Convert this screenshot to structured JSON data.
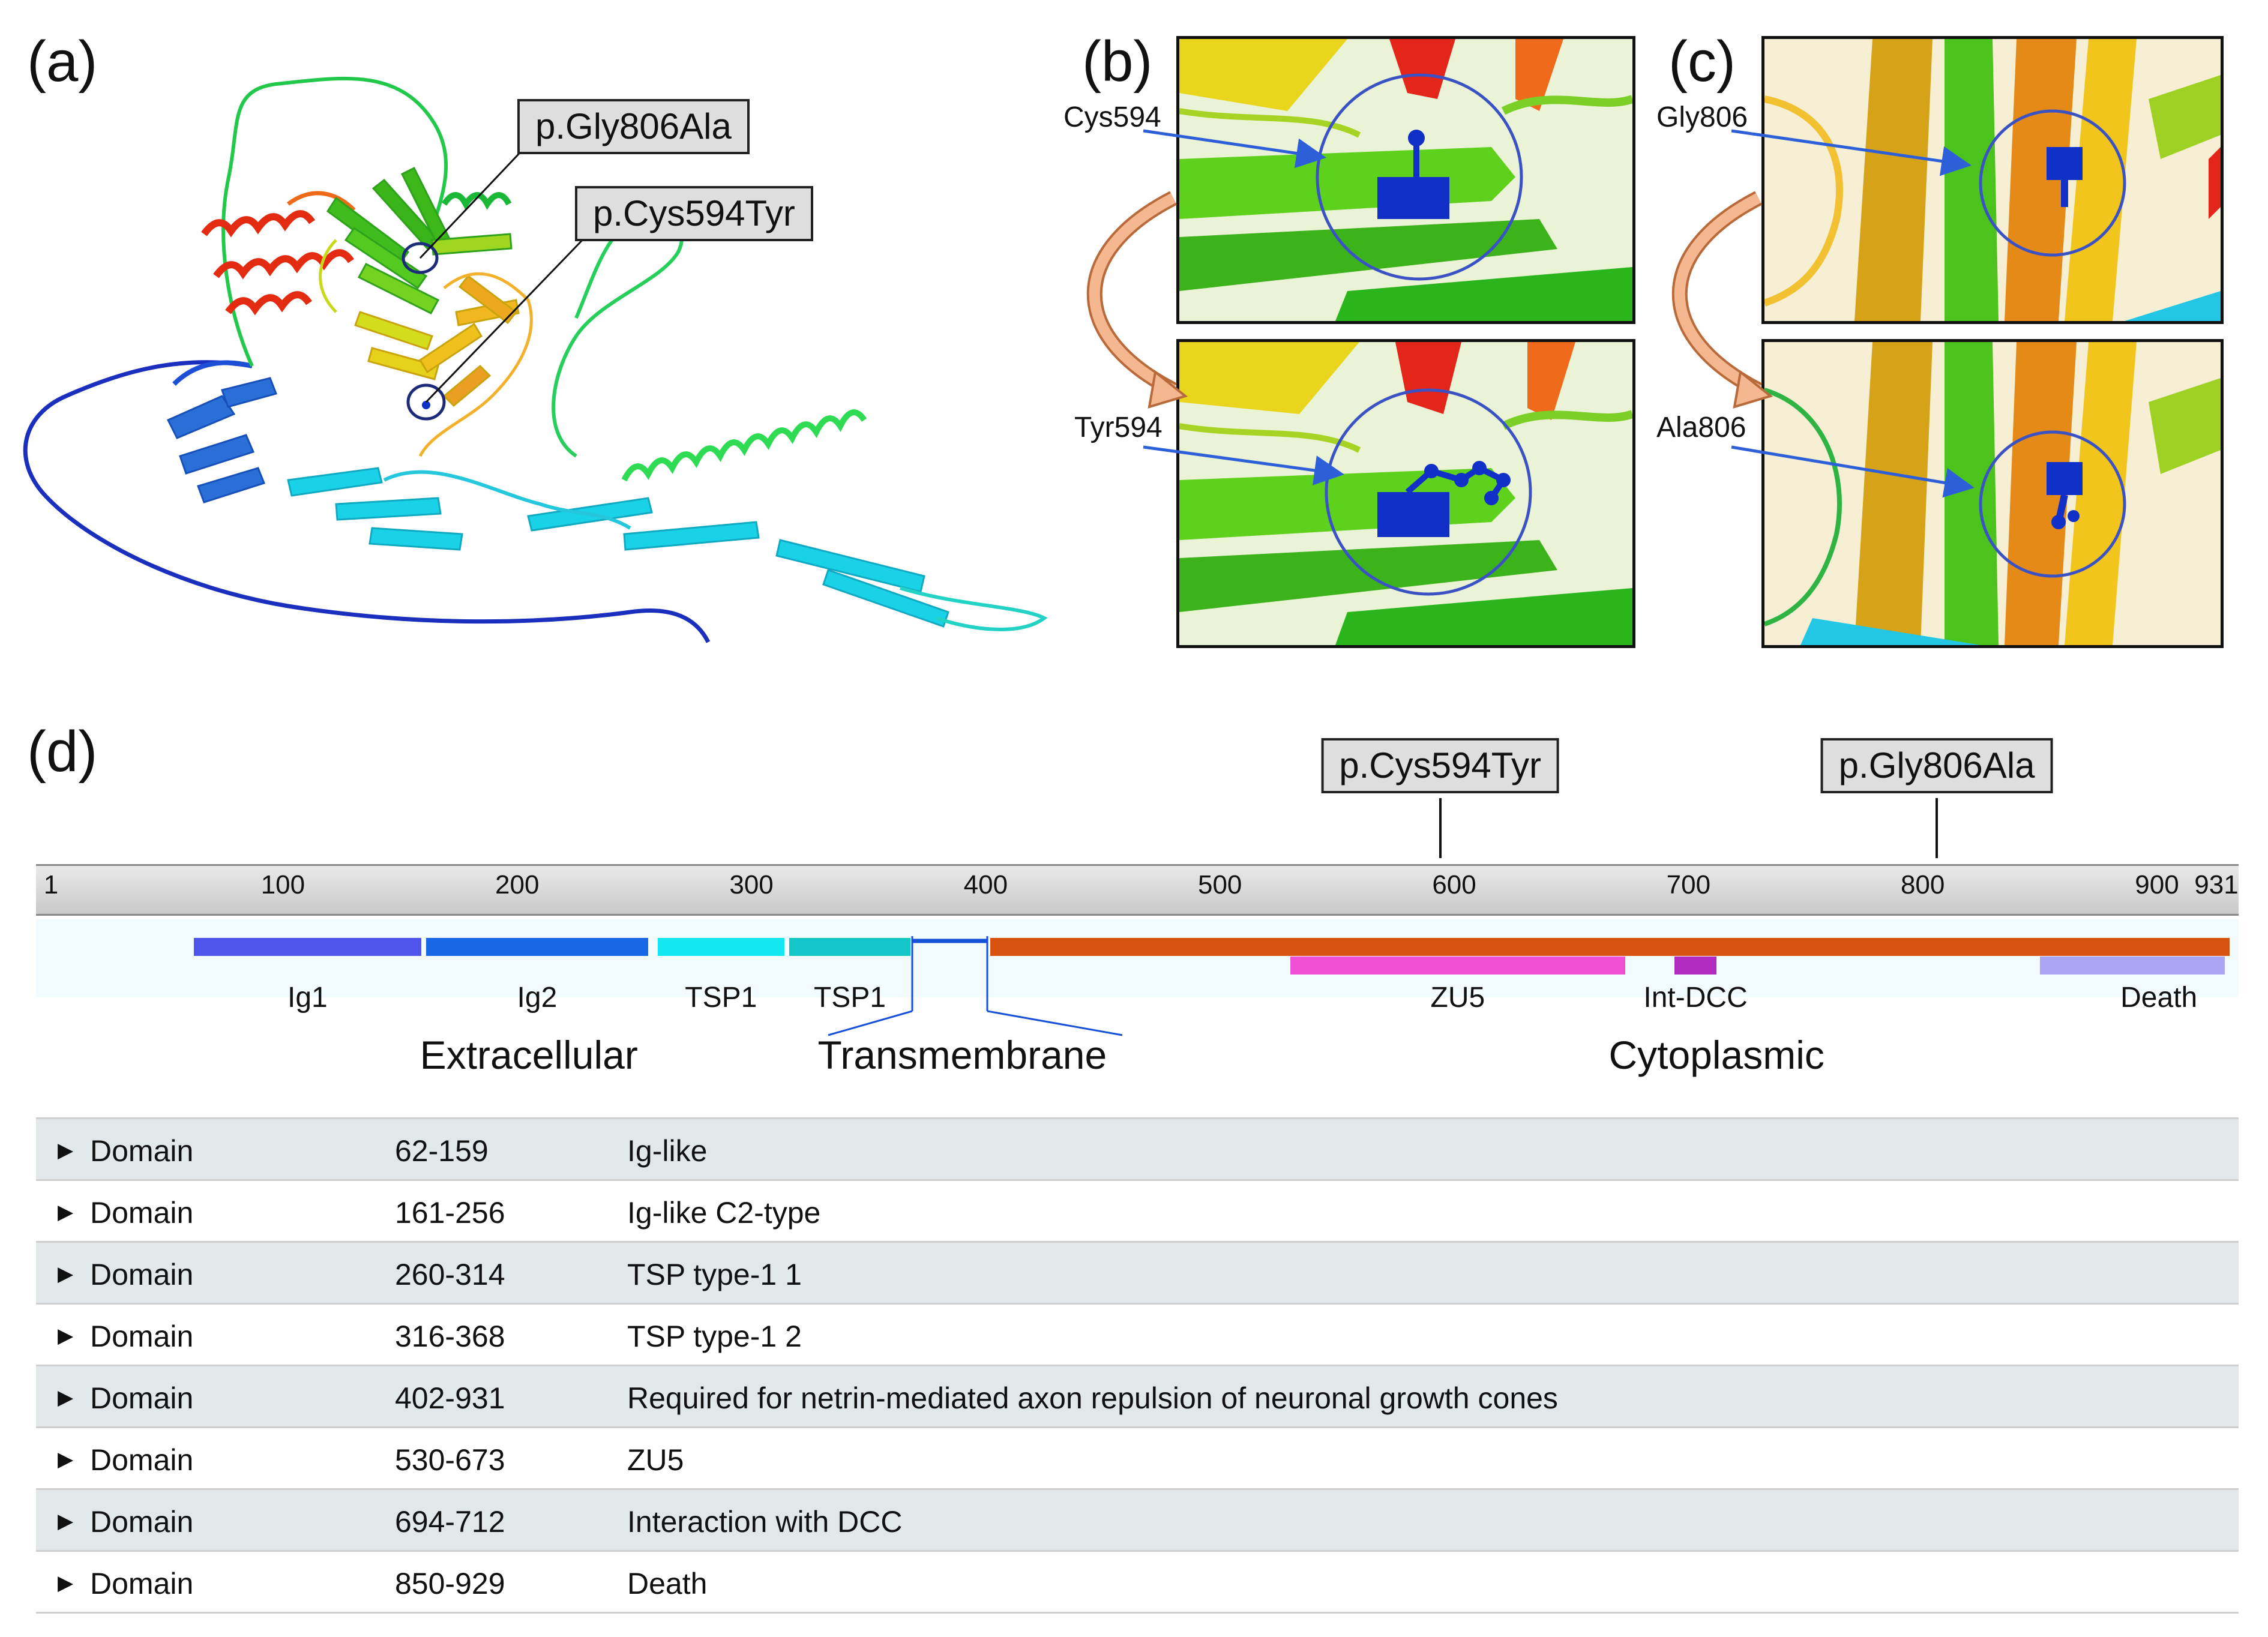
{
  "panels": {
    "a": "(a)",
    "b": "(b)",
    "c": "(c)",
    "d": "(d)"
  },
  "callouts": {
    "gly": "p.Gly806Ala",
    "cys": "p.Cys594Tyr"
  },
  "residues": {
    "b_top": "Cys594",
    "b_bottom": "Tyr594",
    "c_top": "Gly806",
    "c_bottom": "Ala806"
  },
  "colors": {
    "highlight": "#1030c8",
    "arrow": "#2d5fd8",
    "curved_arrow": "#e9a47a",
    "circle": "#3a52c4"
  },
  "scale": {
    "min": 1,
    "max": 931,
    "ticks": [
      {
        "value": 1,
        "label": "1"
      },
      {
        "value": 100,
        "label": "100"
      },
      {
        "value": 200,
        "label": "200"
      },
      {
        "value": 300,
        "label": "300"
      },
      {
        "value": 400,
        "label": "400"
      },
      {
        "value": 500,
        "label": "500"
      },
      {
        "value": 600,
        "label": "600"
      },
      {
        "value": 700,
        "label": "700"
      },
      {
        "value": 800,
        "label": "800"
      },
      {
        "value": 900,
        "label": "900"
      },
      {
        "value": 931,
        "label": "931"
      }
    ]
  },
  "mutations": [
    {
      "position": 594,
      "label": "p.Cys594Tyr"
    },
    {
      "position": 806,
      "label": "p.Gly806Ala"
    }
  ],
  "domains": [
    {
      "start": 62,
      "end": 159,
      "label": "Ig1",
      "color": "#4f55ea",
      "track": 1
    },
    {
      "start": 161,
      "end": 256,
      "label": "Ig2",
      "color": "#1766e6",
      "track": 1
    },
    {
      "start": 260,
      "end": 314,
      "label": "TSP1",
      "color": "#13e7f2",
      "track": 1
    },
    {
      "start": 316,
      "end": 368,
      "label": "TSP1",
      "color": "#13c6c9",
      "track": 1
    },
    {
      "start": 402,
      "end": 931,
      "label": "",
      "color": "#d8520f",
      "track": 1
    },
    {
      "start": 530,
      "end": 673,
      "label": "ZU5",
      "color": "#f14fd4",
      "track": 2
    },
    {
      "start": 694,
      "end": 712,
      "label": "Int-DCC",
      "color": "#b12bc0",
      "track": 2
    },
    {
      "start": 850,
      "end": 929,
      "label": "Death",
      "color": "#a9a5f4",
      "track": 2
    }
  ],
  "regions": [
    {
      "label": "Extracellular",
      "center": 205
    },
    {
      "label": "Transmembrane",
      "center": 390
    },
    {
      "label": "Cytoplasmic",
      "center": 712
    }
  ],
  "table": [
    {
      "type": "Domain",
      "range": "62-159",
      "desc": "Ig-like"
    },
    {
      "type": "Domain",
      "range": "161-256",
      "desc": "Ig-like C2-type"
    },
    {
      "type": "Domain",
      "range": "260-314",
      "desc": "TSP type-1 1"
    },
    {
      "type": "Domain",
      "range": "316-368",
      "desc": "TSP type-1 2"
    },
    {
      "type": "Domain",
      "range": "402-931",
      "desc": "Required for netrin-mediated axon repulsion of neuronal growth cones"
    },
    {
      "type": "Domain",
      "range": "530-673",
      "desc": "ZU5"
    },
    {
      "type": "Domain",
      "range": "694-712",
      "desc": "Interaction with DCC"
    },
    {
      "type": "Domain",
      "range": "850-929",
      "desc": "Death"
    }
  ]
}
